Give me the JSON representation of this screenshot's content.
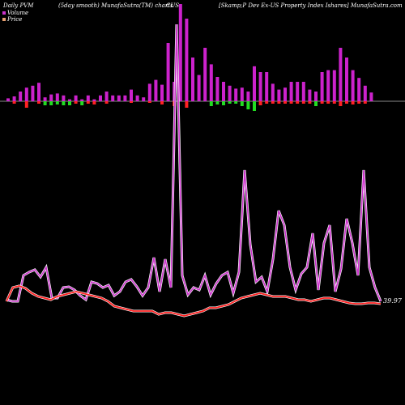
{
  "header": {
    "left": "Daily PVM",
    "center_left": "(5day smooth) MunafaSutra(TM) charts",
    "center_mid": "CUS",
    "right": "[Skamp;P Dev  Ex-US Property Index Ishares] MunafaSutra.com"
  },
  "legend": [
    {
      "label": "Volume",
      "color": "#cc33cc"
    },
    {
      "label": "Price",
      "color": "#e8a070"
    }
  ],
  "colors": {
    "background": "#000000",
    "volume_pos": "#cc22cc",
    "volume_neg_red": "#ff2222",
    "volume_neg_green": "#22dd22",
    "volume_line": "#cc33cc",
    "price_line": "#ff2020",
    "baseline": "#888888"
  },
  "chart_data": {
    "type": "bar",
    "title": "Daily PVM",
    "last_value_label": "39.97",
    "volume_bars": [
      {
        "up": 3,
        "down": 0,
        "color": "pos"
      },
      {
        "up": 5,
        "down": 3,
        "color": "red"
      },
      {
        "up": 10,
        "down": 0,
        "color": "pos"
      },
      {
        "up": 14,
        "down": 8,
        "color": "red"
      },
      {
        "up": 16,
        "down": 0,
        "color": "pos"
      },
      {
        "up": 19,
        "down": 3,
        "color": "red"
      },
      {
        "up": 4,
        "down": 5,
        "color": "green"
      },
      {
        "up": 7,
        "down": 5,
        "color": "green"
      },
      {
        "up": 8,
        "down": 4,
        "color": "green"
      },
      {
        "up": 6,
        "down": 5,
        "color": "green"
      },
      {
        "up": 2,
        "down": 5,
        "color": "green"
      },
      {
        "up": 6,
        "down": 3,
        "color": "red"
      },
      {
        "up": 2,
        "down": 5,
        "color": "green"
      },
      {
        "up": 6,
        "down": 3,
        "color": "red"
      },
      {
        "up": 2,
        "down": 4,
        "color": "red"
      },
      {
        "up": 6,
        "down": 0,
        "color": "pos"
      },
      {
        "up": 10,
        "down": 3,
        "color": "red"
      },
      {
        "up": 6,
        "down": 0,
        "color": "pos"
      },
      {
        "up": 6,
        "down": 0,
        "color": "pos"
      },
      {
        "up": 6,
        "down": 0,
        "color": "pos"
      },
      {
        "up": 12,
        "down": 2,
        "color": "red"
      },
      {
        "up": 6,
        "down": 0,
        "color": "pos"
      },
      {
        "up": 4,
        "down": 0,
        "color": "pos"
      },
      {
        "up": 18,
        "down": 2,
        "color": "red"
      },
      {
        "up": 22,
        "down": 0,
        "color": "pos"
      },
      {
        "up": 17,
        "down": 4,
        "color": "red"
      },
      {
        "up": 60,
        "down": 0,
        "color": "pos"
      },
      {
        "up": 20,
        "down": 6,
        "color": "red"
      },
      {
        "up": 100,
        "down": 0,
        "color": "pos"
      },
      {
        "up": 85,
        "down": 8,
        "color": "red"
      },
      {
        "up": 45,
        "down": 0,
        "color": "pos"
      },
      {
        "up": 27,
        "down": 0,
        "color": "pos"
      },
      {
        "up": 55,
        "down": 0,
        "color": "pos"
      },
      {
        "up": 38,
        "down": 6,
        "color": "green"
      },
      {
        "up": 25,
        "down": 4,
        "color": "green"
      },
      {
        "up": 20,
        "down": 5,
        "color": "green"
      },
      {
        "up": 16,
        "down": 3,
        "color": "green"
      },
      {
        "up": 13,
        "down": 3,
        "color": "green"
      },
      {
        "up": 14,
        "down": 6,
        "color": "green"
      },
      {
        "up": 10,
        "down": 10,
        "color": "green"
      },
      {
        "up": 36,
        "down": 12,
        "color": "green"
      },
      {
        "up": 30,
        "down": 5,
        "color": "red"
      },
      {
        "up": 30,
        "down": 3,
        "color": "red"
      },
      {
        "up": 18,
        "down": 3,
        "color": "red"
      },
      {
        "up": 12,
        "down": 3,
        "color": "red"
      },
      {
        "up": 14,
        "down": 3,
        "color": "red"
      },
      {
        "up": 20,
        "down": 3,
        "color": "red"
      },
      {
        "up": 20,
        "down": 3,
        "color": "red"
      },
      {
        "up": 20,
        "down": 3,
        "color": "red"
      },
      {
        "up": 12,
        "down": 3,
        "color": "red"
      },
      {
        "up": 10,
        "down": 6,
        "color": "green"
      },
      {
        "up": 30,
        "down": 3,
        "color": "red"
      },
      {
        "up": 32,
        "down": 3,
        "color": "red"
      },
      {
        "up": 32,
        "down": 3,
        "color": "red"
      },
      {
        "up": 55,
        "down": 6,
        "color": "red"
      },
      {
        "up": 45,
        "down": 3,
        "color": "red"
      },
      {
        "up": 32,
        "down": 4,
        "color": "red"
      },
      {
        "up": 24,
        "down": 3,
        "color": "red"
      },
      {
        "up": 16,
        "down": 3,
        "color": "red"
      },
      {
        "up": 9,
        "down": 0,
        "color": "pos"
      }
    ],
    "volume_line": [
      370,
      372,
      372,
      340,
      336,
      333,
      342,
      330,
      368,
      368,
      355,
      354,
      358,
      365,
      370,
      348,
      350,
      355,
      352,
      365,
      360,
      348,
      345,
      354,
      365,
      355,
      318,
      360,
      320,
      355,
      30,
      340,
      364,
      355,
      358,
      340,
      364,
      350,
      340,
      336,
      362,
      336,
      210,
      302,
      348,
      342,
      360,
      320,
      260,
      278,
      330,
      358,
      338,
      330,
      288,
      358,
      300,
      278,
      360,
      332,
      270,
      300,
      340,
      210,
      330,
      355,
      372
    ]
  }
}
